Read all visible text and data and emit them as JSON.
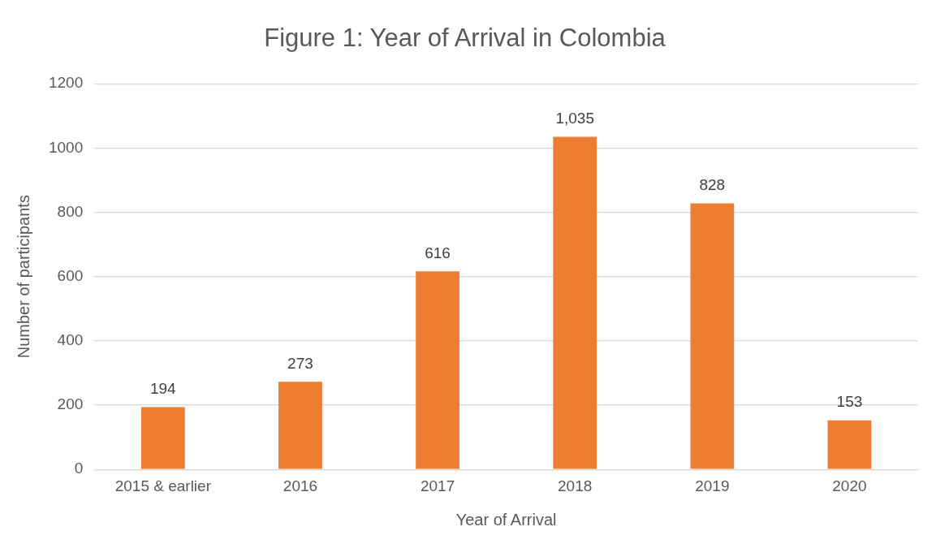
{
  "chart_data": {
    "type": "bar",
    "title": "Figure 1: Year of Arrival in Colombia",
    "xlabel": "Year of Arrival",
    "ylabel": "Number of participants",
    "categories": [
      "2015 & earlier",
      "2016",
      "2017",
      "2018",
      "2019",
      "2020"
    ],
    "values": [
      194,
      273,
      616,
      1035,
      828,
      153
    ],
    "value_labels": [
      "194",
      "273",
      "616",
      "1,035",
      "828",
      "153"
    ],
    "color": "#ed7d31",
    "ylim": [
      0,
      1200
    ],
    "yticks": [
      0,
      200,
      400,
      600,
      800,
      1000,
      1200
    ],
    "grid": "y",
    "legend": false
  }
}
